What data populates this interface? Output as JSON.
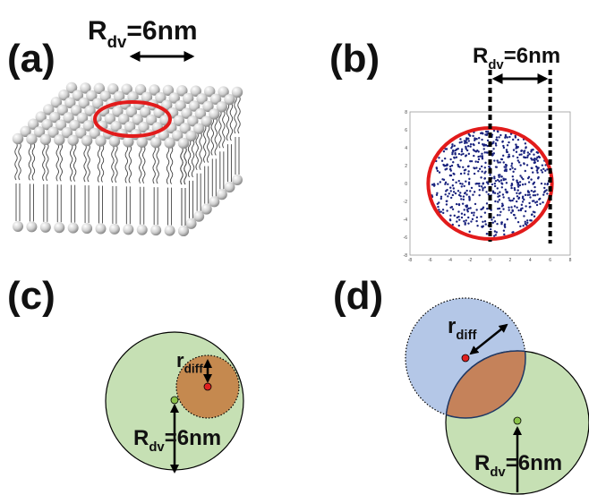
{
  "panels": [
    {
      "label": "(a)",
      "radius_label": {
        "symbol": "R",
        "subscript": "dv",
        "value": "=6nm"
      }
    },
    {
      "label": "(b)",
      "radius_label": {
        "symbol": "R",
        "subscript": "dv",
        "value": "=6nm"
      },
      "plot": {
        "xticks": [
          "-8",
          "-6",
          "-4",
          "-2",
          "0",
          "2",
          "4",
          "6",
          "8"
        ],
        "yticks": [
          "8",
          "6",
          "4",
          "2",
          "0",
          "-2",
          "-4",
          "-6",
          "-8"
        ]
      }
    },
    {
      "label": "(c)",
      "diff_label": {
        "symbol": "r",
        "subscript": "diff"
      },
      "radius_label": {
        "symbol": "R",
        "subscript": "dv",
        "value": "=6nm"
      }
    },
    {
      "label": "(d)",
      "diff_label": {
        "symbol": "r",
        "subscript": "diff"
      },
      "radius_label": {
        "symbol": "R",
        "subscript": "dv",
        "value": "=6nm"
      }
    }
  ]
}
